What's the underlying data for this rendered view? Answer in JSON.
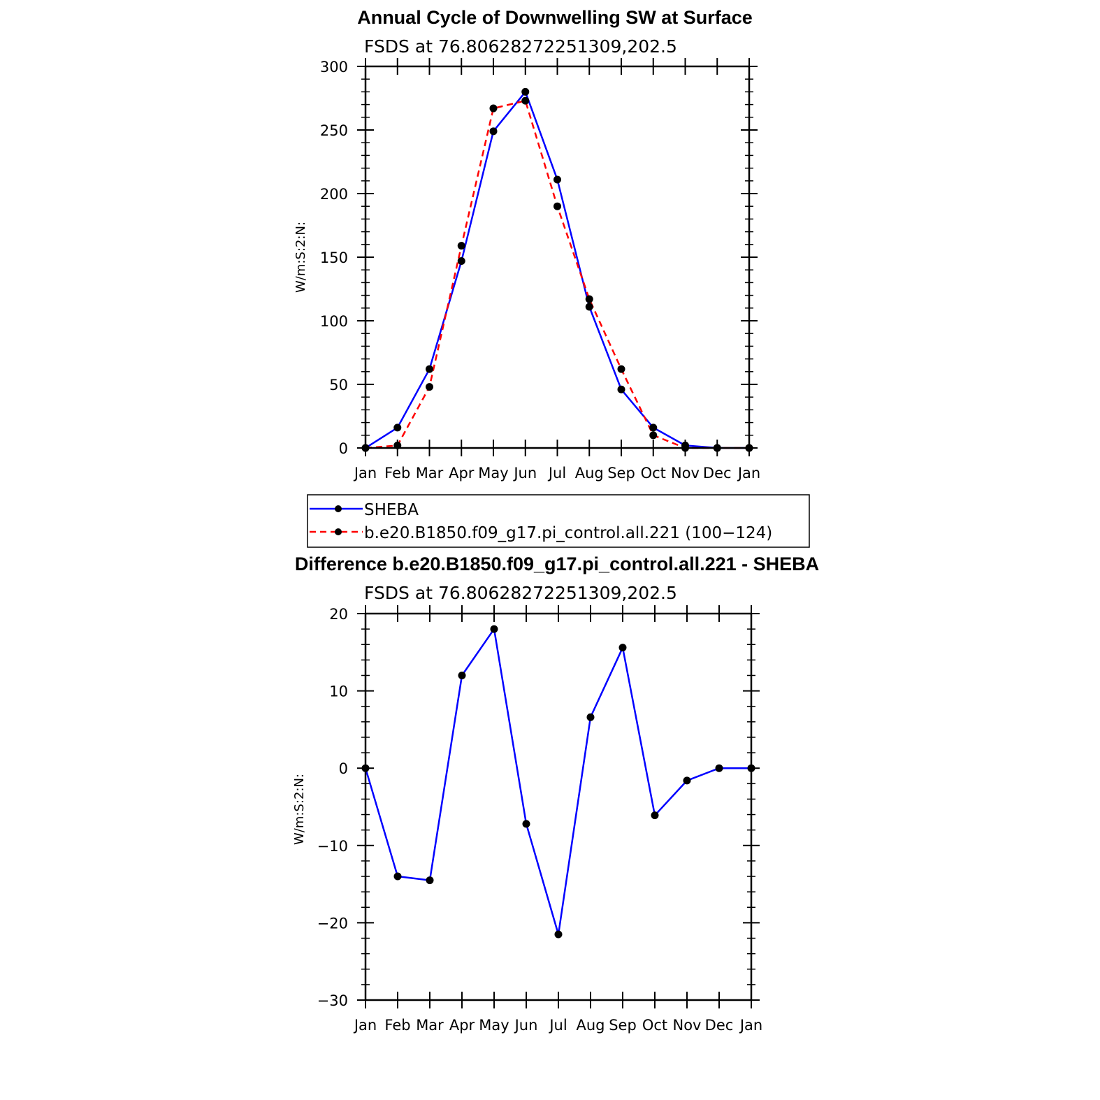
{
  "chart_data": [
    {
      "type": "line",
      "title": "Annual Cycle of Downwelling SW at Surface",
      "subtitle": "FSDS at 76.80628272251309,202.5",
      "ylabel": "W/m:S:2:N:",
      "xlabel": "",
      "categories": [
        "Jan",
        "Feb",
        "Mar",
        "Apr",
        "May",
        "Jun",
        "Jul",
        "Aug",
        "Sep",
        "Oct",
        "Nov",
        "Dec",
        "Jan"
      ],
      "ylim": [
        0,
        300
      ],
      "yticks": [
        "0",
        "50",
        "100",
        "150",
        "200",
        "250",
        "300"
      ],
      "series": [
        {
          "name": "SHEBA",
          "color": "#0000ff",
          "dash": "solid",
          "values": [
            0,
            16,
            62,
            147,
            249,
            280,
            211,
            111,
            46,
            16,
            2,
            0,
            0
          ]
        },
        {
          "name": "b.e20.B1850.f09_g17.pi_control.all.221 (100−124)",
          "color": "#ff0000",
          "dash": "dashed",
          "values": [
            0,
            2,
            48,
            159,
            267,
            273,
            190,
            117,
            62,
            10,
            0,
            0,
            0
          ]
        }
      ],
      "legend": "below"
    },
    {
      "type": "line",
      "title": "Difference b.e20.B1850.f09_g17.pi_control.all.221 - SHEBA",
      "subtitle": "FSDS at 76.80628272251309,202.5",
      "ylabel": "W/m:S:2:N:",
      "xlabel": "",
      "categories": [
        "Jan",
        "Feb",
        "Mar",
        "Apr",
        "May",
        "Jun",
        "Jul",
        "Aug",
        "Sep",
        "Oct",
        "Nov",
        "Dec",
        "Jan"
      ],
      "ylim": [
        -30,
        20
      ],
      "yticks": [
        "−30",
        "−20",
        "−10",
        "0",
        "10",
        "20"
      ],
      "series": [
        {
          "color": "#0000ff",
          "dash": "solid",
          "values": [
            0,
            -14,
            -14.5,
            12,
            18,
            -7.2,
            -21.5,
            6.6,
            15.6,
            -6.1,
            -1.6,
            0,
            0
          ]
        }
      ]
    }
  ]
}
